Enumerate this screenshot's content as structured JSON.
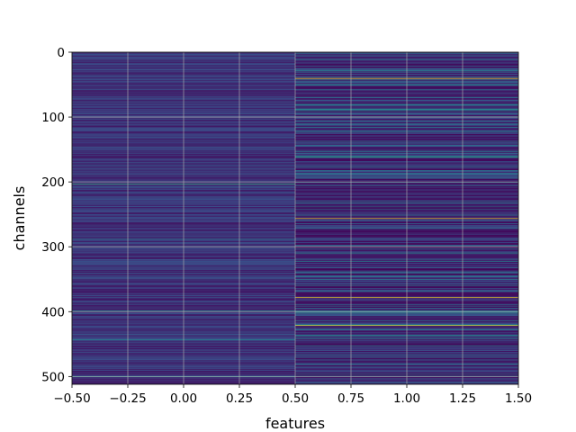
{
  "chart_data": {
    "type": "heatmap",
    "title": "",
    "xlabel": "features",
    "ylabel": "channels",
    "xlim": [
      -0.5,
      1.5
    ],
    "ylim": [
      512,
      0
    ],
    "x_tick_labels": [
      "−0.50",
      "−0.25",
      "0.00",
      "0.25",
      "0.50",
      "0.75",
      "1.00",
      "1.25",
      "1.50"
    ],
    "x_tick_values": [
      -0.5,
      -0.25,
      0.0,
      0.25,
      0.5,
      0.75,
      1.0,
      1.25,
      1.5
    ],
    "y_tick_labels": [
      "0",
      "100",
      "200",
      "300",
      "400",
      "500"
    ],
    "y_tick_values": [
      0,
      100,
      200,
      300,
      400,
      500
    ],
    "grid": true,
    "colormap": "viridis",
    "columns": 2,
    "rows": 512,
    "base_color": "#3b2a82",
    "column_1_highlights": [
      {
        "row": 40,
        "value": 1.0
      },
      {
        "row": 161,
        "value": 0.55
      },
      {
        "row": 256,
        "value": 1.0
      },
      {
        "row": 378,
        "value": 1.0
      },
      {
        "row": 421,
        "value": 1.0
      },
      {
        "row": 28,
        "value": 0.45
      },
      {
        "row": 200,
        "value": 0.4
      },
      {
        "row": 350,
        "value": 0.4
      },
      {
        "row": 470,
        "value": 0.35
      }
    ],
    "column_0_highlights": [
      {
        "row": 203,
        "value": 0.6
      },
      {
        "row": 288,
        "value": 0.45
      },
      {
        "row": 398,
        "value": 0.5
      },
      {
        "row": 443,
        "value": 0.45
      },
      {
        "row": 500,
        "value": 0.5
      }
    ]
  }
}
